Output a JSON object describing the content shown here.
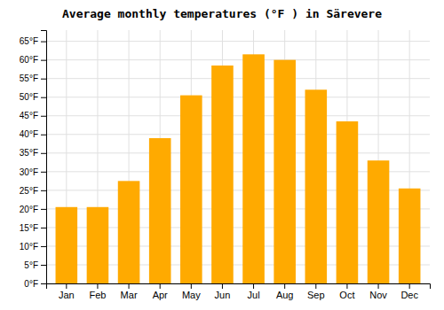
{
  "chart_data": {
    "type": "bar",
    "title": "Average monthly temperatures (°F ) in Särevere",
    "categories": [
      "Jan",
      "Feb",
      "Mar",
      "Apr",
      "May",
      "Jun",
      "Jul",
      "Aug",
      "Sep",
      "Oct",
      "Nov",
      "Dec"
    ],
    "values": [
      20.5,
      20.5,
      27.5,
      39.0,
      50.5,
      58.5,
      61.5,
      60.0,
      52.0,
      43.5,
      33.0,
      25.5
    ],
    "color": "#FFAA00",
    "ylim": [
      0,
      68
    ],
    "yticks": [
      {
        "value": 0,
        "label": "0°F"
      },
      {
        "value": 5,
        "label": "5°F"
      },
      {
        "value": 10,
        "label": "10°F"
      },
      {
        "value": 15,
        "label": "15°F"
      },
      {
        "value": 20,
        "label": "20°F"
      },
      {
        "value": 25,
        "label": "25°F"
      },
      {
        "value": 30,
        "label": "30°F"
      },
      {
        "value": 35,
        "label": "35°F"
      },
      {
        "value": 40,
        "label": "40°F"
      },
      {
        "value": 45,
        "label": "45°F"
      },
      {
        "value": 50,
        "label": "50°F"
      },
      {
        "value": 55,
        "label": "55°F"
      },
      {
        "value": 60,
        "label": "60°F"
      },
      {
        "value": 65,
        "label": "65°F"
      }
    ],
    "grid": true
  }
}
